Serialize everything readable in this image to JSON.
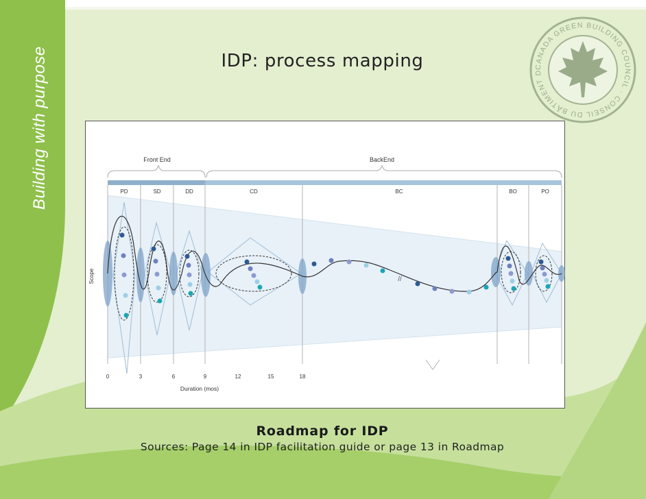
{
  "slide": {
    "tagline": "Building with purpose",
    "title": "IDP: process mapping",
    "caption": "Roadmap for IDP",
    "sources": "Sources: Page 14 in IDP facilitation guide or page 13 in Roadmap"
  },
  "logo": {
    "text": "CANADA GREEN BUILDING COUNCIL · CONSEIL DU BÂTIMENT DURABLE DU CANADA",
    "color": "#9aab8a"
  },
  "diagram": {
    "groups": [
      {
        "label": "Front End"
      },
      {
        "label": "BackEnd"
      }
    ],
    "phases": [
      "PD",
      "SD",
      "DD",
      "CD",
      "BC",
      "BO",
      "PO"
    ],
    "y_axis_label": "Scope",
    "x_axis_label": "Duration (mos)",
    "x_ticks": [
      "0",
      "3",
      "6",
      "9",
      "12",
      "15",
      "18"
    ],
    "break_mark": "//",
    "colors": {
      "dot_dark": "#2e5a94",
      "dot_mid": "#6e80bf",
      "dot_light": "#8e9ad0",
      "dot_pale": "#9ccfe4",
      "dot_teal": "#1ba6b4",
      "ellipse_fill": "#7fa3c8",
      "band": "#e8f1f8"
    }
  }
}
